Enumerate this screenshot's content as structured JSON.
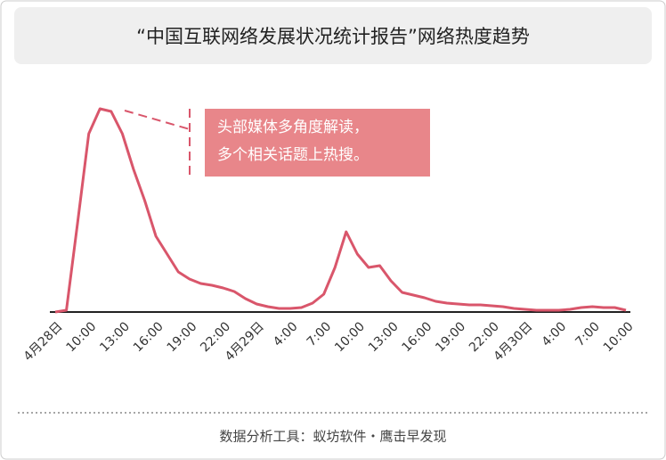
{
  "chart_data": {
    "type": "line",
    "title": "“中国互联网络发展状况统计报告”网络热度趋势",
    "annotation": [
      "头部媒体多角度解读，",
      "多个相关话题上热搜。"
    ],
    "source": "数据分析工具：蚁坊软件・鹰击早发现",
    "categories": [
      "4月28日",
      null,
      null,
      "10:00",
      null,
      null,
      "13:00",
      null,
      null,
      "16:00",
      null,
      null,
      "19:00",
      null,
      null,
      "22:00",
      null,
      null,
      "4月29日",
      null,
      null,
      "4:00",
      null,
      null,
      "7:00",
      null,
      null,
      "10:00",
      null,
      null,
      "13:00",
      null,
      null,
      "16:00",
      null,
      null,
      "19:00",
      null,
      null,
      "22:00",
      null,
      null,
      "4月30日",
      null,
      null,
      "4:00",
      null,
      null,
      "7:00",
      null,
      null,
      "10:00"
    ],
    "series": [
      {
        "name": "网络热度",
        "color": "#d9566b",
        "values": [
          0,
          2,
          100,
          200,
          228,
          225,
          200,
          160,
          125,
          85,
          65,
          45,
          37,
          32,
          30,
          27,
          23,
          15,
          9,
          6,
          4,
          4,
          5,
          10,
          20,
          50,
          90,
          65,
          50,
          52,
          35,
          22,
          19,
          16,
          12,
          10,
          9,
          8,
          8,
          7,
          6,
          4,
          3,
          2,
          2,
          2,
          3,
          5,
          6,
          5,
          5,
          2
        ]
      }
    ],
    "ylim": [
      0,
      240
    ]
  }
}
